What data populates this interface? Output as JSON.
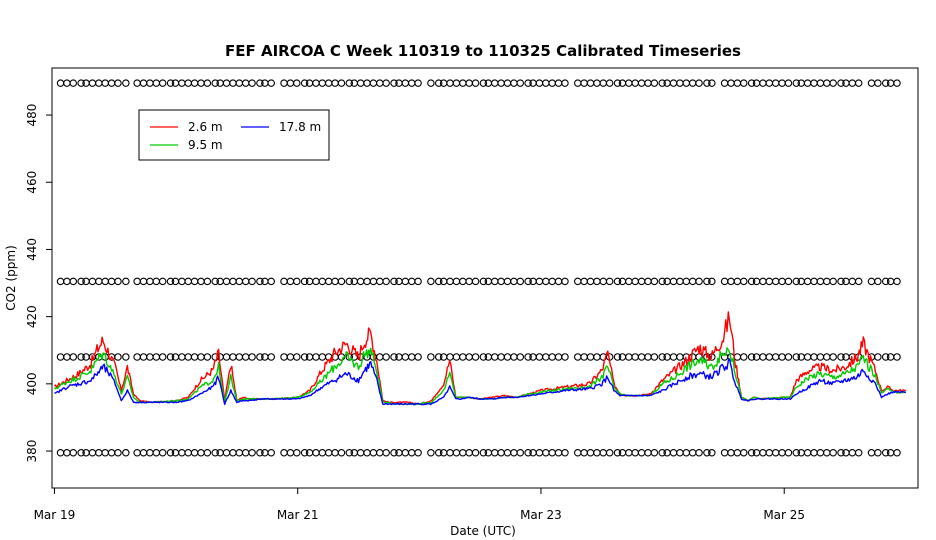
{
  "chart_data": {
    "type": "line",
    "title": "FEF AIRCOA C  Week 110319 to 110325  Calibrated Timeseries",
    "xlabel": "Date (UTC)",
    "ylabel": "CO2 (ppm)",
    "xlim": [
      -0.02,
      7.1
    ],
    "ylim": [
      369,
      494
    ],
    "x_ticks": [
      {
        "value": 0,
        "label": "Mar 19"
      },
      {
        "value": 2,
        "label": "Mar 21"
      },
      {
        "value": 4,
        "label": "Mar 23"
      },
      {
        "value": 6,
        "label": "Mar 25"
      }
    ],
    "y_ticks": [
      380,
      400,
      420,
      440,
      460,
      480
    ],
    "grid": false,
    "legend": {
      "position": "top-left",
      "entries": [
        {
          "label": "2.6 m",
          "color": "#ff0000"
        },
        {
          "label": "9.5 m",
          "color": "#00cc00"
        },
        {
          "label": "17.8 m",
          "color": "#0000ff"
        }
      ]
    },
    "calibration_points": {
      "marker": "open-circle",
      "levels": [
        489.5,
        430.5,
        408.0,
        379.5
      ],
      "x_start": 0.05,
      "x_end": 6.98
    },
    "series": [
      {
        "name": "2.6 m",
        "color": "#ff0000",
        "x": [
          0.0,
          0.1,
          0.2,
          0.3,
          0.35,
          0.4,
          0.45,
          0.5,
          0.55,
          0.6,
          0.65,
          0.7,
          0.8,
          1.0,
          1.1,
          1.2,
          1.3,
          1.35,
          1.4,
          1.45,
          1.5,
          1.55,
          1.6,
          1.7,
          1.8,
          2.0,
          2.1,
          2.2,
          2.3,
          2.4,
          2.5,
          2.55,
          2.6,
          2.65,
          2.7,
          2.75,
          2.8,
          2.9,
          3.0,
          3.1,
          3.2,
          3.25,
          3.3,
          3.35,
          3.4,
          3.5,
          3.6,
          3.7,
          3.8,
          3.9,
          4.0,
          4.2,
          4.4,
          4.5,
          4.55,
          4.6,
          4.65,
          4.7,
          4.8,
          4.9,
          5.0,
          5.1,
          5.2,
          5.3,
          5.4,
          5.5,
          5.55,
          5.6,
          5.65,
          5.7,
          5.75,
          5.8,
          6.0,
          6.05,
          6.1,
          6.2,
          6.3,
          6.4,
          6.5,
          6.6,
          6.65,
          6.7,
          6.75,
          6.8,
          6.85,
          6.9,
          7.0
        ],
        "values": [
          399,
          401,
          403,
          406,
          410,
          413,
          409,
          405,
          398,
          405,
          397,
          395,
          394.5,
          395,
          396,
          401,
          404,
          409,
          395,
          406,
          395,
          396,
          395.5,
          395.5,
          395.5,
          396,
          398,
          404,
          409,
          412,
          408,
          413,
          415,
          407,
          395,
          394.5,
          394.5,
          394.5,
          394,
          395,
          400,
          407,
          396,
          396,
          396,
          395.5,
          396,
          396.5,
          396,
          397,
          398,
          399,
          400,
          404,
          409,
          400,
          397,
          396.5,
          396.5,
          397,
          401,
          404,
          407,
          411,
          408,
          414,
          420,
          406,
          396,
          395,
          396,
          395.5,
          396,
          396,
          401,
          404,
          405,
          404,
          405,
          408,
          412,
          408,
          404,
          398,
          399,
          398,
          398
        ]
      },
      {
        "name": "9.5 m",
        "color": "#00cc00",
        "x": [
          0.0,
          0.1,
          0.2,
          0.3,
          0.35,
          0.4,
          0.45,
          0.5,
          0.55,
          0.6,
          0.65,
          0.7,
          0.8,
          1.0,
          1.1,
          1.2,
          1.3,
          1.35,
          1.4,
          1.45,
          1.5,
          1.55,
          1.6,
          1.7,
          1.8,
          2.0,
          2.1,
          2.2,
          2.3,
          2.4,
          2.5,
          2.55,
          2.6,
          2.65,
          2.7,
          2.75,
          2.8,
          2.9,
          3.0,
          3.1,
          3.2,
          3.25,
          3.3,
          3.35,
          3.4,
          3.5,
          3.6,
          3.7,
          3.8,
          3.9,
          4.0,
          4.2,
          4.4,
          4.5,
          4.55,
          4.6,
          4.65,
          4.7,
          4.8,
          4.9,
          5.0,
          5.1,
          5.2,
          5.3,
          5.4,
          5.5,
          5.55,
          5.6,
          5.65,
          5.7,
          5.75,
          5.8,
          6.0,
          6.05,
          6.1,
          6.2,
          6.3,
          6.4,
          6.5,
          6.6,
          6.65,
          6.7,
          6.75,
          6.8,
          6.85,
          6.9,
          7.0
        ],
        "values": [
          398.5,
          400.5,
          402,
          404,
          407,
          409,
          406,
          402,
          397,
          402,
          396,
          394.5,
          394.5,
          395,
          395.5,
          399,
          401,
          405,
          394.5,
          402,
          395,
          395.5,
          395.5,
          395.5,
          395.5,
          396,
          397.5,
          401,
          405,
          408,
          405,
          409,
          410,
          404,
          394.5,
          394.5,
          394,
          394,
          394,
          394.5,
          398,
          403,
          396,
          396,
          396,
          395.5,
          395.5,
          396,
          396,
          397,
          397.5,
          398.5,
          399,
          402,
          405,
          399,
          397,
          396.5,
          396.5,
          396.5,
          400,
          402,
          405,
          407,
          405,
          409,
          411,
          403,
          396,
          395,
          396,
          395.5,
          396,
          396,
          399,
          402,
          403,
          402,
          403,
          405,
          408,
          405,
          402,
          397.5,
          398.5,
          397.5,
          397.5
        ]
      },
      {
        "name": "17.8 m",
        "color": "#0000ff",
        "x": [
          0.0,
          0.1,
          0.2,
          0.3,
          0.35,
          0.4,
          0.45,
          0.5,
          0.55,
          0.6,
          0.65,
          0.7,
          0.8,
          1.0,
          1.1,
          1.2,
          1.3,
          1.35,
          1.4,
          1.45,
          1.5,
          1.55,
          1.6,
          1.7,
          1.8,
          2.0,
          2.1,
          2.2,
          2.3,
          2.4,
          2.5,
          2.55,
          2.6,
          2.65,
          2.7,
          2.75,
          2.8,
          2.9,
          3.0,
          3.1,
          3.2,
          3.25,
          3.3,
          3.35,
          3.4,
          3.5,
          3.6,
          3.7,
          3.8,
          3.9,
          4.0,
          4.2,
          4.4,
          4.5,
          4.55,
          4.6,
          4.65,
          4.7,
          4.8,
          4.9,
          5.0,
          5.1,
          5.2,
          5.3,
          5.4,
          5.5,
          5.55,
          5.6,
          5.65,
          5.7,
          5.75,
          5.8,
          6.0,
          6.05,
          6.1,
          6.2,
          6.3,
          6.4,
          6.5,
          6.6,
          6.65,
          6.7,
          6.75,
          6.8,
          6.85,
          6.9,
          7.0
        ],
        "values": [
          397,
          399,
          400,
          401,
          403,
          405,
          403,
          400,
          395,
          398,
          394.5,
          394.5,
          394.5,
          394.5,
          395,
          397,
          399,
          402,
          394,
          398,
          394.5,
          395,
          395,
          395.5,
          395.5,
          395.5,
          396.5,
          399,
          401,
          403,
          401,
          404,
          406,
          401,
          394,
          394,
          394,
          394,
          394,
          394,
          396,
          399,
          395.5,
          395.5,
          396,
          395.5,
          395.5,
          396,
          396,
          396.5,
          397,
          398,
          398.5,
          400,
          402,
          398,
          396.5,
          396.5,
          396.5,
          396.5,
          398,
          400,
          402,
          403,
          402,
          405,
          406,
          400,
          395.5,
          395,
          395.5,
          395.5,
          395.5,
          395.5,
          397,
          399,
          401,
          400,
          401,
          402,
          404,
          402,
          400,
          396,
          397,
          397.5,
          397.5
        ]
      }
    ]
  }
}
